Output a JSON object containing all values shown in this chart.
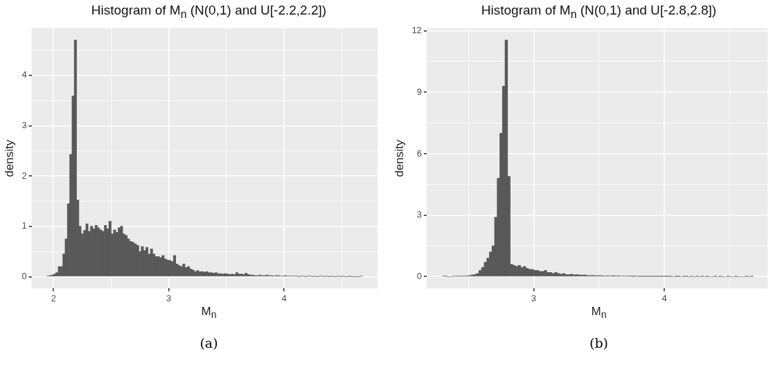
{
  "chart_data": [
    {
      "type": "histogram",
      "title": "Histogram of M$_{n}$ (N(0,1) and U[-2.2,2.2])",
      "xlabel": "M$_{n}$",
      "ylabel": "density",
      "color": "#595959",
      "grid": true,
      "bins": [
        1.94,
        1.96,
        1.98,
        2.0,
        2.02,
        2.04,
        2.06,
        2.08,
        2.1,
        2.12,
        2.14,
        2.16,
        2.18,
        2.2,
        2.22,
        2.24,
        2.26,
        2.28,
        2.3,
        2.32,
        2.34,
        2.36,
        2.38,
        2.4,
        2.42,
        2.44,
        2.46,
        2.48,
        2.5,
        2.52,
        2.54,
        2.56,
        2.58,
        2.6,
        2.62,
        2.64,
        2.66,
        2.68,
        2.7,
        2.72,
        2.74,
        2.76,
        2.78,
        2.8,
        2.82,
        2.84,
        2.86,
        2.88,
        2.9,
        2.92,
        2.94,
        2.96,
        2.98,
        3.0,
        3.02,
        3.04,
        3.06,
        3.08,
        3.1,
        3.12,
        3.14,
        3.16,
        3.18,
        3.2,
        3.22,
        3.24,
        3.26,
        3.28,
        3.3,
        3.32,
        3.34,
        3.36,
        3.38,
        3.4,
        3.42,
        3.44,
        3.46,
        3.48,
        3.5,
        3.52,
        3.54,
        3.56,
        3.58,
        3.6,
        3.62,
        3.64,
        3.66,
        3.68,
        3.7,
        3.72,
        3.74,
        3.76,
        3.78,
        3.8,
        3.82,
        3.84,
        3.86,
        3.88,
        3.9,
        3.92,
        3.94,
        3.96,
        3.98,
        4.0,
        4.02,
        4.04,
        4.06,
        4.08,
        4.1,
        4.12,
        4.14,
        4.16,
        4.18,
        4.2,
        4.22,
        4.24,
        4.26,
        4.28,
        4.3,
        4.32,
        4.34,
        4.36,
        4.38,
        4.4,
        4.42,
        4.44,
        4.46,
        4.48,
        4.5,
        4.52,
        4.54,
        4.56,
        4.58,
        4.6,
        4.62,
        4.64,
        4.66,
        4.68
      ],
      "values": [
        0.01,
        0.02,
        0.03,
        0.05,
        0.08,
        0.2,
        0.2,
        0.45,
        0.75,
        1.45,
        2.43,
        3.59,
        4.7,
        1.52,
        1.0,
        0.85,
        0.92,
        1.05,
        0.9,
        1.0,
        0.95,
        1.02,
        0.97,
        0.93,
        0.9,
        1.02,
        0.95,
        1.1,
        0.85,
        0.93,
        0.88,
        0.97,
        1.0,
        0.85,
        0.82,
        0.75,
        0.7,
        0.68,
        0.65,
        0.62,
        0.5,
        0.6,
        0.52,
        0.58,
        0.45,
        0.55,
        0.45,
        0.4,
        0.4,
        0.38,
        0.42,
        0.35,
        0.33,
        0.32,
        0.3,
        0.42,
        0.25,
        0.22,
        0.2,
        0.25,
        0.18,
        0.2,
        0.15,
        0.13,
        0.1,
        0.12,
        0.1,
        0.1,
        0.09,
        0.1,
        0.08,
        0.08,
        0.07,
        0.08,
        0.06,
        0.06,
        0.05,
        0.06,
        0.05,
        0.04,
        0.05,
        0.04,
        0.08,
        0.05,
        0.05,
        0.04,
        0.07,
        0.04,
        0.03,
        0.03,
        0.02,
        0.02,
        0.03,
        0.02,
        0.02,
        0.03,
        0.02,
        0.02,
        0.01,
        0.02,
        0.02,
        0.01,
        0.01,
        0.02,
        0.01,
        0.01,
        0.01,
        0.01,
        0.01,
        0,
        0.01,
        0.01,
        0,
        0.01,
        0.01,
        0,
        0.01,
        0,
        0.01,
        0.01,
        0,
        0.01,
        0,
        0.01,
        0,
        0,
        0.01,
        0,
        0.01,
        0,
        0,
        0.01,
        0,
        0,
        0,
        0,
        0.01
      ],
      "xlim": [
        1.81,
        4.81
      ],
      "xticks": [
        2,
        {
          "value": 2.5,
          "label": null
        },
        3,
        {
          "value": 3.5,
          "label": null
        },
        4,
        {
          "value": 4.5,
          "label": null
        }
      ],
      "ylim": [
        -0.235,
        4.935
      ],
      "yticks": [
        0,
        {
          "value": 0.5,
          "label": null
        },
        1,
        {
          "value": 1.5,
          "label": null
        },
        2,
        {
          "value": 2.5,
          "label": null
        },
        3,
        {
          "value": 3.5,
          "label": null
        },
        4,
        {
          "value": 4.5,
          "label": null
        }
      ],
      "annotations": [
        "(a)"
      ]
    },
    {
      "type": "histogram",
      "title": "Histogram of M$_{n}$ (N(0,1) and U[-2.8,2.8])",
      "xlabel": "M$_{n}$",
      "ylabel": "density",
      "color": "#595959",
      "grid": true,
      "bins": [
        2.3,
        2.32,
        2.34,
        2.36,
        2.38,
        2.4,
        2.42,
        2.44,
        2.46,
        2.48,
        2.5,
        2.52,
        2.54,
        2.56,
        2.58,
        2.6,
        2.62,
        2.64,
        2.66,
        2.68,
        2.7,
        2.72,
        2.74,
        2.76,
        2.78,
        2.8,
        2.82,
        2.84,
        2.86,
        2.88,
        2.9,
        2.92,
        2.94,
        2.96,
        2.98,
        3.0,
        3.02,
        3.04,
        3.06,
        3.08,
        3.1,
        3.12,
        3.14,
        3.16,
        3.18,
        3.2,
        3.22,
        3.24,
        3.26,
        3.28,
        3.3,
        3.32,
        3.34,
        3.36,
        3.38,
        3.4,
        3.42,
        3.44,
        3.46,
        3.48,
        3.5,
        3.52,
        3.54,
        3.56,
        3.58,
        3.6,
        3.62,
        3.64,
        3.66,
        3.68,
        3.7,
        3.72,
        3.74,
        3.76,
        3.78,
        3.8,
        3.82,
        3.84,
        3.86,
        3.88,
        3.9,
        3.92,
        3.94,
        3.96,
        3.98,
        4.0,
        4.02,
        4.04,
        4.06,
        4.08,
        4.1,
        4.12,
        4.14,
        4.16,
        4.18,
        4.2,
        4.22,
        4.24,
        4.26,
        4.28,
        4.3,
        4.32,
        4.34,
        4.36,
        4.38,
        4.4,
        4.42,
        4.44,
        4.46,
        4.48,
        4.5,
        4.52,
        4.54,
        4.56,
        4.58,
        4.6,
        4.62,
        4.64,
        4.66,
        4.68
      ],
      "values": [
        0.02,
        0.03,
        0,
        0,
        0.02,
        0.02,
        0.02,
        0.02,
        0.03,
        0.04,
        0.05,
        0.08,
        0.1,
        0.15,
        0.3,
        0.45,
        0.7,
        0.9,
        1.2,
        1.5,
        2.9,
        4.8,
        7.0,
        9.3,
        11.55,
        4.9,
        0.6,
        0.55,
        0.5,
        0.55,
        0.45,
        0.5,
        0.4,
        0.35,
        0.35,
        0.3,
        0.3,
        0.25,
        0.25,
        0.3,
        0.2,
        0.2,
        0.15,
        0.2,
        0.15,
        0.12,
        0.15,
        0.1,
        0.1,
        0.12,
        0.08,
        0.1,
        0.08,
        0.07,
        0.08,
        0.06,
        0.05,
        0.06,
        0.05,
        0.04,
        0.05,
        0.04,
        0.03,
        0.04,
        0.03,
        0.05,
        0.03,
        0.04,
        0.02,
        0.02,
        0.02,
        0.02,
        0.01,
        0.01,
        0.02,
        0.01,
        0.01,
        0.01,
        0.01,
        0.01,
        0.01,
        0.01,
        0.01,
        0.01,
        0.01,
        0.01,
        0.01,
        0.01,
        0,
        0.01,
        0.01,
        0,
        0.01,
        0.01,
        0,
        0.01,
        0,
        0.01,
        0,
        0.01,
        0,
        0.01,
        0,
        0,
        0.01,
        0,
        0.01,
        0,
        0,
        0.01,
        0,
        0,
        0.01,
        0,
        0,
        0,
        0.01,
        0,
        0.01
      ],
      "xlim": [
        2.18,
        4.79
      ],
      "xticks": [
        {
          "value": 2.5,
          "label": null
        },
        3,
        {
          "value": 3.5,
          "label": null
        },
        4,
        {
          "value": 4.5,
          "label": null
        }
      ],
      "ylim": [
        -0.58,
        12.13
      ],
      "yticks": [
        0,
        {
          "value": 1.5,
          "label": null
        },
        3,
        {
          "value": 4.5,
          "label": null
        },
        6,
        {
          "value": 7.5,
          "label": null
        },
        9,
        {
          "value": 10.5,
          "label": null
        },
        12
      ],
      "annotations": [
        "(b)"
      ]
    }
  ]
}
